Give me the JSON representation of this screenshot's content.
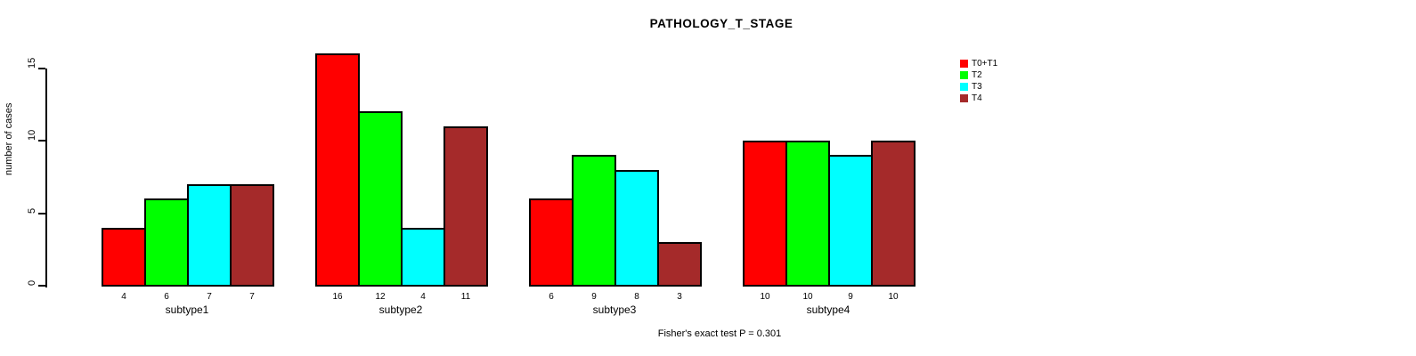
{
  "header": {
    "title": "PATHOLOGY_T_STAGE"
  },
  "chart_data": {
    "type": "bar",
    "title": "PATHOLOGY_T_STAGE",
    "xlabel": "",
    "ylabel": "number of cases",
    "categories": [
      "subtype1",
      "subtype2",
      "subtype3",
      "subtype4"
    ],
    "series": [
      {
        "name": "T0+T1",
        "color": "#FF0000",
        "values": [
          4,
          16,
          6,
          10
        ]
      },
      {
        "name": "T2",
        "color": "#00FF00",
        "values": [
          6,
          12,
          9,
          10
        ]
      },
      {
        "name": "T3",
        "color": "#00FFFF",
        "values": [
          7,
          4,
          8,
          9
        ]
      },
      {
        "name": "T4",
        "color": "#A52A2A",
        "values": [
          7,
          11,
          3,
          10
        ]
      }
    ],
    "yticks": [
      0,
      5,
      10,
      15
    ],
    "ylim": [
      0,
      16.5
    ],
    "grid": false,
    "bar_value_labels": true,
    "legend_position": "top-right",
    "footer": "Fisher's exact test P = 0.301"
  }
}
